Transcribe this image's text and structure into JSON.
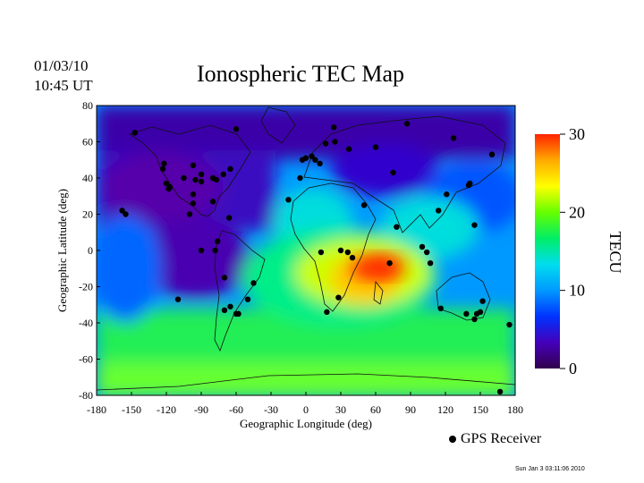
{
  "header": {
    "date": "01/03/10",
    "time": "10:45 UT",
    "title": "Ionospheric TEC Map"
  },
  "chart_data": {
    "type": "heatmap",
    "title": "Ionospheric TEC Map",
    "xlabel": "Geographic Longitude (deg)",
    "ylabel": "Geographic Latitude (deg)",
    "xlim": [
      -180,
      180
    ],
    "ylim": [
      -80,
      80
    ],
    "x_ticks": [
      -180,
      -150,
      -120,
      -90,
      -60,
      -30,
      0,
      30,
      60,
      90,
      120,
      150,
      180
    ],
    "y_ticks": [
      80,
      60,
      40,
      20,
      0,
      -20,
      -40,
      -60,
      -80
    ],
    "colorbar": {
      "label": "TECU",
      "range": [
        0,
        30
      ],
      "ticks": [
        30,
        20,
        10,
        0
      ],
      "colors": [
        "#33004d",
        "#4400bb",
        "#0033ff",
        "#0099ff",
        "#00ddee",
        "#00ee66",
        "#66ff00",
        "#ffff00",
        "#ffaa00",
        "#ff2200"
      ]
    },
    "tec_peaks": [
      {
        "lon": 50,
        "lat": -5,
        "tec": 30
      },
      {
        "lon": 45,
        "lat": -20,
        "tec": 26
      },
      {
        "lon": 20,
        "lat": -10,
        "tec": 20
      },
      {
        "lon": 80,
        "lat": 5,
        "tec": 18
      },
      {
        "lon": 0,
        "lat": 15,
        "tec": 14
      }
    ],
    "receivers": [
      {
        "lon": -147,
        "lat": 65
      },
      {
        "lon": -122,
        "lat": 48
      },
      {
        "lon": -123,
        "lat": 45
      },
      {
        "lon": -120,
        "lat": 37
      },
      {
        "lon": -118,
        "lat": 34
      },
      {
        "lon": -117,
        "lat": 35
      },
      {
        "lon": -105,
        "lat": 40
      },
      {
        "lon": -97,
        "lat": 47
      },
      {
        "lon": -95,
        "lat": 39
      },
      {
        "lon": -90,
        "lat": 38
      },
      {
        "lon": -90,
        "lat": 42
      },
      {
        "lon": -80,
        "lat": 40
      },
      {
        "lon": -77,
        "lat": 39
      },
      {
        "lon": -71,
        "lat": 42
      },
      {
        "lon": -65,
        "lat": 45
      },
      {
        "lon": -97,
        "lat": 31
      },
      {
        "lon": -97,
        "lat": 26
      },
      {
        "lon": -80,
        "lat": 27
      },
      {
        "lon": -66,
        "lat": 18
      },
      {
        "lon": -100,
        "lat": 20
      },
      {
        "lon": -76,
        "lat": 5
      },
      {
        "lon": -78,
        "lat": 0
      },
      {
        "lon": -90,
        "lat": 0
      },
      {
        "lon": -70,
        "lat": -15
      },
      {
        "lon": -110,
        "lat": -27
      },
      {
        "lon": -70,
        "lat": -33
      },
      {
        "lon": -65,
        "lat": -31
      },
      {
        "lon": -60,
        "lat": -35
      },
      {
        "lon": -58,
        "lat": -35
      },
      {
        "lon": -50,
        "lat": -27
      },
      {
        "lon": -45,
        "lat": -18
      },
      {
        "lon": -155,
        "lat": 20
      },
      {
        "lon": -158,
        "lat": 22
      },
      {
        "lon": -15,
        "lat": 28
      },
      {
        "lon": -5,
        "lat": 40
      },
      {
        "lon": -3,
        "lat": 50
      },
      {
        "lon": 0,
        "lat": 51
      },
      {
        "lon": 5,
        "lat": 52
      },
      {
        "lon": 8,
        "lat": 50
      },
      {
        "lon": 12,
        "lat": 48
      },
      {
        "lon": 17,
        "lat": 59
      },
      {
        "lon": 25,
        "lat": 60
      },
      {
        "lon": 24,
        "lat": 68
      },
      {
        "lon": 37,
        "lat": 56
      },
      {
        "lon": 60,
        "lat": 57
      },
      {
        "lon": 75,
        "lat": 43
      },
      {
        "lon": 87,
        "lat": 70
      },
      {
        "lon": -60,
        "lat": 67
      },
      {
        "lon": 50,
        "lat": 25
      },
      {
        "lon": 78,
        "lat": 13
      },
      {
        "lon": 36,
        "lat": -1
      },
      {
        "lon": 13,
        "lat": -1
      },
      {
        "lon": 30,
        "lat": 0
      },
      {
        "lon": 40,
        "lat": -4
      },
      {
        "lon": 72,
        "lat": -7
      },
      {
        "lon": 28,
        "lat": -26
      },
      {
        "lon": 18,
        "lat": -34
      },
      {
        "lon": 100,
        "lat": 2
      },
      {
        "lon": 104,
        "lat": -1
      },
      {
        "lon": 107,
        "lat": -7
      },
      {
        "lon": 114,
        "lat": 22
      },
      {
        "lon": 121,
        "lat": 31
      },
      {
        "lon": 127,
        "lat": 62
      },
      {
        "lon": 140,
        "lat": 36
      },
      {
        "lon": 141,
        "lat": 37
      },
      {
        "lon": 145,
        "lat": 14
      },
      {
        "lon": 160,
        "lat": 53
      },
      {
        "lon": 116,
        "lat": -32
      },
      {
        "lon": 138,
        "lat": -35
      },
      {
        "lon": 145,
        "lat": -38
      },
      {
        "lon": 150,
        "lat": -34
      },
      {
        "lon": 152,
        "lat": -28
      },
      {
        "lon": 147,
        "lat": -35
      },
      {
        "lon": 175,
        "lat": -41
      },
      {
        "lon": 167,
        "lat": -78
      }
    ]
  },
  "legend": {
    "label": "GPS Receiver"
  },
  "footer": {
    "timestamp": "Sun Jan  3 03:11:06 2010"
  }
}
